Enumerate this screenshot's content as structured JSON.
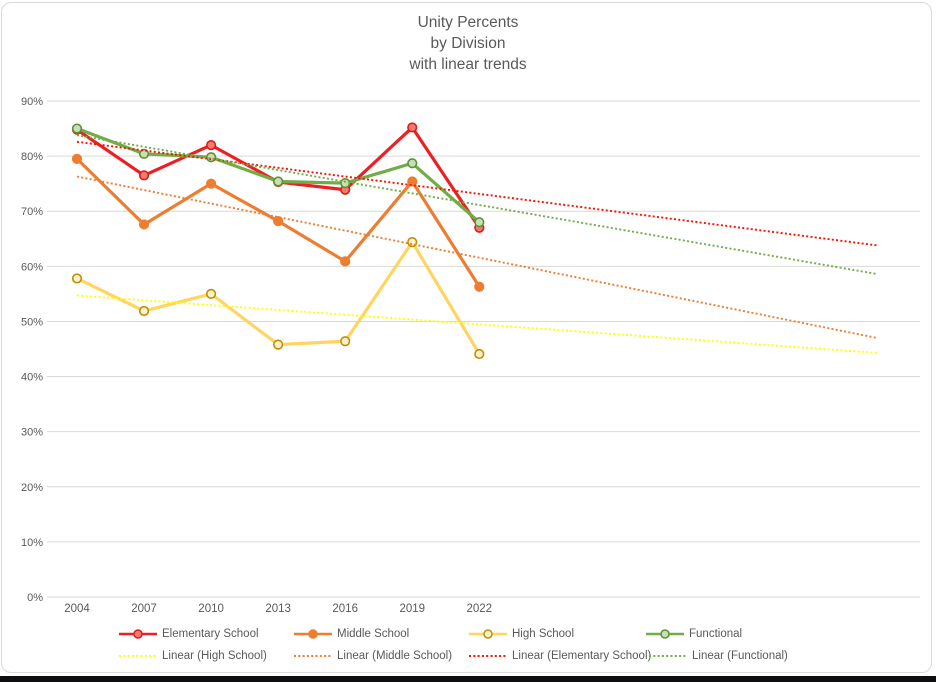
{
  "title": {
    "lines": [
      "Unity Percents",
      "by Division",
      "with linear trends"
    ]
  },
  "palette": {
    "grid": "#D9D9D9",
    "axis_text": "#595959",
    "title_text": "#595959",
    "chart_border": "#D9D9D9",
    "bottom_bar": "#0D0D12"
  },
  "chart_data": {
    "type": "line",
    "title": "Unity Percents by Division with linear trends",
    "categories": [
      "2004",
      "2007",
      "2010",
      "2013",
      "2016",
      "2019",
      "2022"
    ],
    "series": [
      {
        "name": "Elementary School",
        "line_color": "#EC2024",
        "marker_fill": "#F4796F",
        "marker_stroke": "#D91E18",
        "values": [
          84.8,
          76.5,
          82.0,
          75.3,
          73.9,
          85.2,
          67.0
        ]
      },
      {
        "name": "Middle School",
        "line_color": "#ED7D31",
        "marker_fill": "#ED7D31",
        "marker_stroke": "#ED7D31",
        "values": [
          79.5,
          67.6,
          75.0,
          68.2,
          60.9,
          75.4,
          56.3
        ]
      },
      {
        "name": "High School",
        "line_color": "#FFD55F",
        "marker_fill": "#FFF2CC",
        "marker_stroke": "#BF8F00",
        "values": [
          57.8,
          51.9,
          55.0,
          45.8,
          46.4,
          64.4,
          44.1
        ]
      },
      {
        "name": "Functional",
        "line_color": "#70AD47",
        "marker_fill": "#C6E0B4",
        "marker_stroke": "#5E9137",
        "values": [
          85.0,
          80.4,
          79.8,
          75.4,
          75.1,
          78.7,
          68.0
        ]
      }
    ],
    "trendlines": [
      {
        "name": "Linear (High School)",
        "color": "#FFFF00",
        "start_value": 54.7,
        "end_value": 44.3
      },
      {
        "name": "Linear (Middle School)",
        "color": "#ED7D31",
        "start_value": 76.3,
        "end_value": 47.0
      },
      {
        "name": "Linear (Elementary School)",
        "color": "#FF0F00",
        "start_value": 82.6,
        "end_value": 63.8
      },
      {
        "name": "Linear (Functional)",
        "color": "#70AD47",
        "start_value": 83.8,
        "end_value": 58.6
      }
    ],
    "ylim": [
      0,
      90
    ],
    "ytick_step": 10,
    "ytick_labels": [
      "0%",
      "10%",
      "20%",
      "30%",
      "40%",
      "50%",
      "60%",
      "70%",
      "80%",
      "90%"
    ],
    "grid": true,
    "legend_position": "bottom",
    "trend_forecast_note": "trendlines extend beyond 2022 toward the right edge of the plot"
  }
}
